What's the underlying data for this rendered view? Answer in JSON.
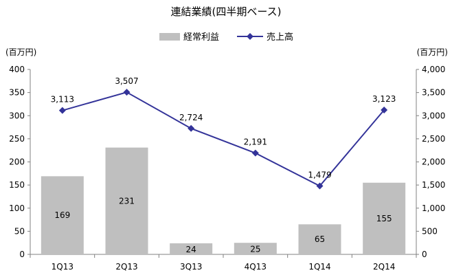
{
  "chart_data": {
    "type": "bar+line",
    "title": "連結業績(四半期ベース)",
    "categories": [
      "1Q13",
      "2Q13",
      "3Q13",
      "4Q13",
      "1Q14",
      "2Q14"
    ],
    "series": [
      {
        "name": "経常利益",
        "type": "bar",
        "axis": "left",
        "color": "#bfbfbf",
        "values": [
          169,
          231,
          24,
          25,
          65,
          155
        ]
      },
      {
        "name": "売上高",
        "type": "line",
        "axis": "right",
        "color": "#333399",
        "values": [
          3113,
          3507,
          2724,
          2191,
          1479,
          3123
        ]
      }
    ],
    "left_axis": {
      "unit": "(百万円)",
      "min": 0,
      "max": 400,
      "step": 50,
      "ticks": [
        "0",
        "50",
        "100",
        "150",
        "200",
        "250",
        "300",
        "350",
        "400"
      ]
    },
    "right_axis": {
      "unit": "(百万円)",
      "min": 0,
      "max": 4000,
      "step": 500,
      "ticks": [
        "0",
        "500",
        "1,000",
        "1,500",
        "2,000",
        "2,500",
        "3,000",
        "3,500",
        "4,000"
      ]
    },
    "bar_labels": [
      "169",
      "231",
      "24",
      "25",
      "65",
      "155"
    ],
    "line_labels": [
      "3,113",
      "3,507",
      "2,724",
      "2,191",
      "1,479",
      "3,123"
    ],
    "legend_position": "top-center",
    "grid": false
  }
}
